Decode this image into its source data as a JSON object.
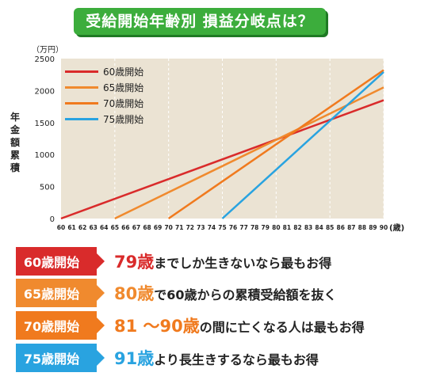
{
  "title": "受給開始年齢別 損益分岐点は？",
  "y_unit": "（万円）",
  "x_unit": "(歳)",
  "ylabel": "年金額累積",
  "chart_data": {
    "type": "line",
    "xlabel": "",
    "ylabel": "年金額累積",
    "xlim": [
      60,
      90
    ],
    "ylim": [
      0,
      2500
    ],
    "y_ticks": [
      "0",
      "500",
      "1000",
      "1500",
      "2000",
      "2500"
    ],
    "x_ticks": [
      "60",
      "61",
      "62",
      "63",
      "64",
      "65",
      "66",
      "67",
      "68",
      "69",
      "70",
      "71",
      "72",
      "73",
      "74",
      "75",
      "76",
      "77",
      "78",
      "79",
      "80",
      "81",
      "82",
      "83",
      "84",
      "85",
      "86",
      "87",
      "88",
      "89",
      "90"
    ],
    "grid": "vertical every 5 years",
    "legend": "top-left",
    "series": [
      {
        "name": "60歳開始",
        "color": "#d92b2b",
        "x": [
          60,
          90
        ],
        "y": [
          0,
          1850
        ]
      },
      {
        "name": "65歳開始",
        "color": "#f08a2e",
        "x": [
          65,
          90
        ],
        "y": [
          0,
          2050
        ]
      },
      {
        "name": "70歳開始",
        "color": "#f07a1e",
        "x": [
          70,
          90
        ],
        "y": [
          0,
          2320
        ]
      },
      {
        "name": "75歳開始",
        "color": "#29a3e0",
        "x": [
          75,
          90
        ],
        "y": [
          0,
          2290
        ]
      }
    ]
  },
  "rows": [
    {
      "tag": "60歳開始",
      "color": "#d92b2b",
      "hl": "79歳",
      "text": "までしか生きないなら最もお得"
    },
    {
      "tag": "65歳開始",
      "color": "#f08a2e",
      "hl": "80歳",
      "text": "で60歳からの累積受給額を抜く"
    },
    {
      "tag": "70歳開始",
      "color": "#f07a1e",
      "hl": "81 〜90歳",
      "text": "の間に亡くなる人は最もお得"
    },
    {
      "tag": "75歳開始",
      "color": "#29a3e0",
      "hl": "91歳",
      "text": "より長生きするなら最もお得"
    }
  ]
}
